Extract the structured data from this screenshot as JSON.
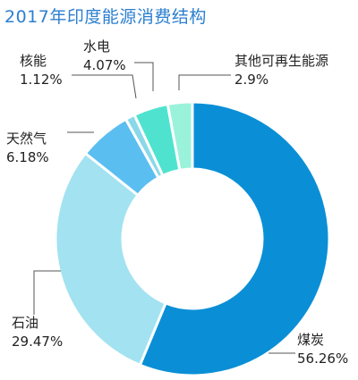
{
  "chart_data": {
    "type": "pie",
    "title": "2017年印度能源消费结构",
    "donut": true,
    "slices": [
      {
        "name": "煤炭",
        "value": 56.26,
        "label": "56.26%",
        "color": "#0a8fd6"
      },
      {
        "name": "石油",
        "value": 29.47,
        "label": "29.47%",
        "color": "#a2e2f1"
      },
      {
        "name": "天然气",
        "value": 6.18,
        "label": "6.18%",
        "color": "#5bbef1"
      },
      {
        "name": "核能",
        "value": 1.12,
        "label": "1.12%",
        "color": "#8ad8ea"
      },
      {
        "name": "水电",
        "value": 4.07,
        "label": "4.07%",
        "color": "#4fe3cf"
      },
      {
        "name": "其他可再生能源",
        "value": 2.9,
        "label": "2.9%",
        "color": "#9af2da"
      }
    ]
  }
}
